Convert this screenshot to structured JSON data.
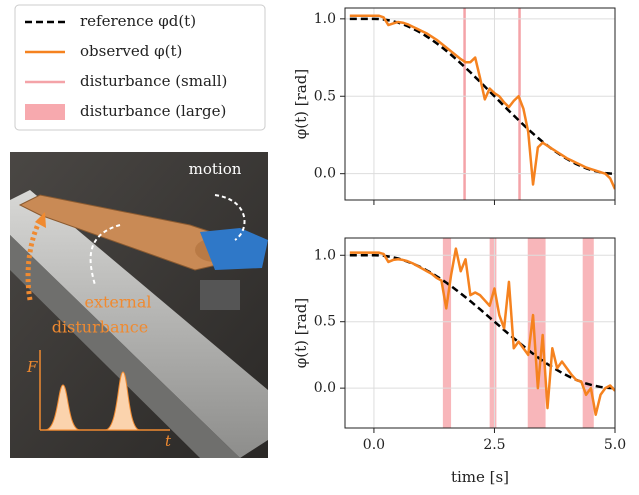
{
  "photo": {
    "motion": "motion",
    "external_disturbance": [
      "external",
      "disturbance"
    ],
    "force_axis": "F",
    "time_axis": "t"
  },
  "chart_data": [
    {
      "type": "line",
      "y_label": "φ(t) [rad]",
      "x": [
        -0.5,
        -0.4,
        -0.3,
        -0.2,
        -0.1,
        0.0,
        0.1,
        0.2,
        0.3,
        0.4,
        0.5,
        0.6,
        0.7,
        0.8,
        0.9,
        1.0,
        1.1,
        1.2,
        1.3,
        1.4,
        1.5,
        1.6,
        1.7,
        1.8,
        1.9,
        2.0,
        2.1,
        2.2,
        2.3,
        2.4,
        2.5,
        2.6,
        2.7,
        2.8,
        2.9,
        3.0,
        3.1,
        3.2,
        3.3,
        3.4,
        3.5,
        3.6,
        3.7,
        3.8,
        3.9,
        4.0,
        4.1,
        4.2,
        4.3,
        4.4,
        4.5,
        4.6,
        4.7,
        4.8,
        4.9,
        5.0
      ],
      "series": [
        {
          "name": "reference φd(t)",
          "color": "#000000",
          "dashed": true,
          "values": [
            1,
            1,
            1,
            1,
            1,
            1,
            0.999,
            0.996,
            0.991,
            0.984,
            0.976,
            0.965,
            0.952,
            0.938,
            0.922,
            0.905,
            0.885,
            0.865,
            0.842,
            0.819,
            0.794,
            0.768,
            0.741,
            0.713,
            0.684,
            0.655,
            0.624,
            0.594,
            0.563,
            0.531,
            0.5,
            0.469,
            0.437,
            0.406,
            0.376,
            0.346,
            0.316,
            0.287,
            0.259,
            0.232,
            0.206,
            0.181,
            0.158,
            0.136,
            0.115,
            0.096,
            0.078,
            0.062,
            0.048,
            0.035,
            0.025,
            0.016,
            0.009,
            0.004,
            0.001,
            0
          ]
        },
        {
          "name": "observed φ(t)",
          "color": "#f5821f",
          "dashed": false,
          "values": [
            1.02,
            1.02,
            1.02,
            1.02,
            1.02,
            1.02,
            1.02,
            1.01,
            0.96,
            0.97,
            0.98,
            0.975,
            0.965,
            0.95,
            0.935,
            0.92,
            0.905,
            0.885,
            0.865,
            0.84,
            0.815,
            0.79,
            0.765,
            0.74,
            0.72,
            0.72,
            0.75,
            0.62,
            0.48,
            0.55,
            0.52,
            0.5,
            0.46,
            0.43,
            0.47,
            0.5,
            0.42,
            0.27,
            -0.07,
            0.17,
            0.2,
            0.18,
            0.16,
            0.14,
            0.12,
            0.1,
            0.085,
            0.07,
            0.055,
            0.04,
            0.03,
            0.02,
            0.01,
            0.0,
            -0.03,
            -0.1
          ]
        }
      ],
      "disturbances": {
        "name": "disturbance (small)",
        "color": "#f4a3a8",
        "x": [
          1.88,
          3.02
        ]
      },
      "xlim": [
        -0.6,
        5.0
      ],
      "xticks": [
        0,
        2.5,
        5
      ],
      "ylim": [
        -0.17,
        1.07
      ],
      "yticks": [
        {
          "value": 0,
          "label": "0.0"
        },
        {
          "value": 0.5,
          "label": "0.5"
        },
        {
          "value": 1,
          "label": "1.0"
        }
      ],
      "grid": true
    },
    {
      "type": "line",
      "y_label": "φ(t) [rad]",
      "x_label": "time [s]",
      "x": [
        -0.5,
        -0.4,
        -0.3,
        -0.2,
        -0.1,
        0.0,
        0.1,
        0.2,
        0.3,
        0.4,
        0.5,
        0.6,
        0.7,
        0.8,
        0.9,
        1.0,
        1.1,
        1.2,
        1.3,
        1.4,
        1.5,
        1.6,
        1.7,
        1.8,
        1.9,
        2.0,
        2.1,
        2.2,
        2.3,
        2.4,
        2.5,
        2.6,
        2.7,
        2.8,
        2.9,
        3.0,
        3.1,
        3.2,
        3.3,
        3.4,
        3.5,
        3.6,
        3.7,
        3.8,
        3.9,
        4.0,
        4.1,
        4.2,
        4.3,
        4.4,
        4.5,
        4.6,
        4.7,
        4.8,
        4.9,
        5.0
      ],
      "series": [
        {
          "color": "#000000",
          "dashed": true,
          "values": [
            1,
            1,
            1,
            1,
            1,
            1,
            0.999,
            0.996,
            0.991,
            0.984,
            0.976,
            0.965,
            0.952,
            0.938,
            0.922,
            0.905,
            0.885,
            0.865,
            0.842,
            0.819,
            0.794,
            0.768,
            0.741,
            0.713,
            0.684,
            0.655,
            0.624,
            0.594,
            0.563,
            0.531,
            0.5,
            0.469,
            0.437,
            0.406,
            0.376,
            0.346,
            0.316,
            0.287,
            0.259,
            0.232,
            0.206,
            0.181,
            0.158,
            0.136,
            0.115,
            0.096,
            0.078,
            0.062,
            0.048,
            0.035,
            0.025,
            0.016,
            0.009,
            0.004,
            0.001,
            0
          ]
        },
        {
          "color": "#f5821f",
          "dashed": false,
          "values": [
            1.02,
            1.02,
            1.02,
            1.02,
            1.02,
            1.02,
            1.02,
            1.01,
            0.95,
            0.965,
            0.97,
            0.965,
            0.955,
            0.94,
            0.92,
            0.9,
            0.88,
            0.86,
            0.83,
            0.81,
            0.6,
            0.85,
            1.05,
            0.88,
            0.97,
            0.7,
            0.72,
            0.7,
            0.66,
            0.62,
            0.75,
            0.55,
            0.45,
            0.8,
            0.3,
            0.35,
            0.3,
            0.25,
            0.55,
            0.0,
            0.4,
            -0.15,
            0.3,
            0.15,
            0.2,
            0.15,
            0.1,
            0.06,
            0.05,
            -0.05,
            0.0,
            -0.2,
            -0.05,
            0.0,
            0.02,
            -0.02
          ]
        }
      ],
      "disturbances": {
        "name": "disturbance (large)",
        "color": "#f7a9ae",
        "ranges": [
          [
            1.43,
            1.6
          ],
          [
            2.4,
            2.54
          ],
          [
            3.19,
            3.56
          ],
          [
            4.33,
            4.56
          ]
        ]
      },
      "xlim": [
        -0.6,
        5.0
      ],
      "xticks": [
        {
          "value": 0,
          "label": "0.0"
        },
        {
          "value": 2.5,
          "label": "2.5"
        },
        {
          "value": 5,
          "label": "5.0"
        }
      ],
      "ylim": [
        -0.3,
        1.13
      ],
      "yticks": [
        {
          "value": 0,
          "label": "0.0"
        },
        {
          "value": 0.5,
          "label": "0.5"
        },
        {
          "value": 1,
          "label": "1.0"
        }
      ],
      "grid": true
    }
  ]
}
